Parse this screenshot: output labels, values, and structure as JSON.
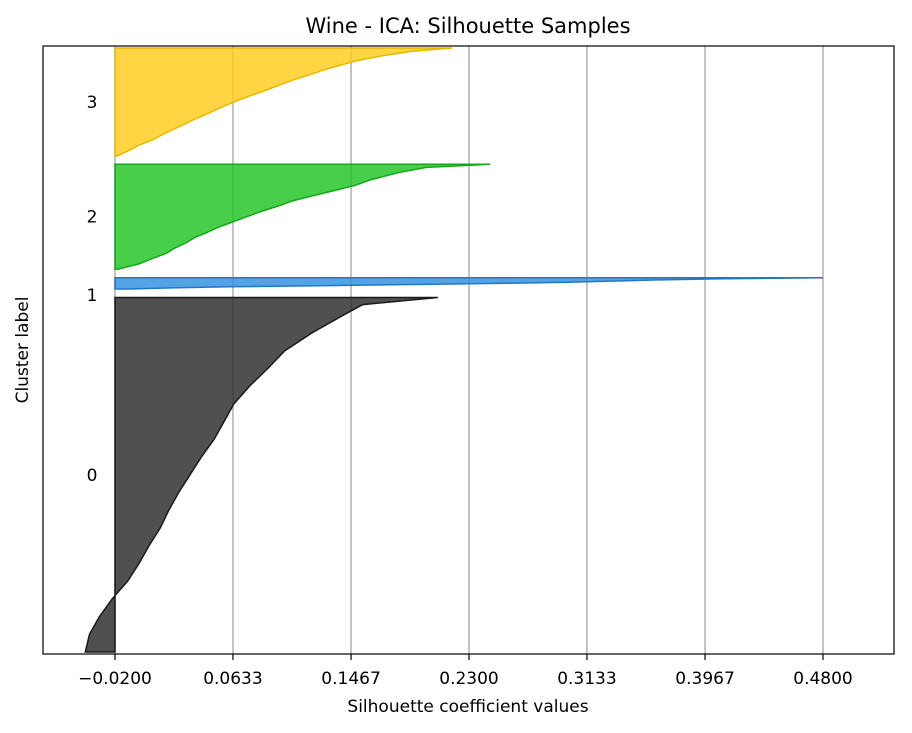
{
  "chart_data": {
    "type": "area",
    "title": "Wine - ICA: Silhouette Samples",
    "xlabel": "Silhouette coefficient values",
    "ylabel": "Cluster label",
    "xlim": [
      -0.12,
      0.43
    ],
    "x_ticks": [
      "−0.0200",
      "0.0633",
      "0.1467",
      "0.2300",
      "0.3133",
      "0.3967",
      "0.4800"
    ],
    "x_tick_values": [
      -0.02,
      0.0633,
      0.1467,
      0.23,
      0.3133,
      0.3967,
      0.48
    ],
    "grid": "vertical",
    "clusters": [
      {
        "label": "0",
        "color": "#2a2a2a",
        "stroke": "#1a1a1a",
        "y_range": [
          0,
          125
        ],
        "profile": [
          [
            0.0,
            0.208
          ],
          [
            0.02,
            0.155
          ],
          [
            0.05,
            0.141
          ],
          [
            0.1,
            0.119
          ],
          [
            0.15,
            0.1
          ],
          [
            0.2,
            0.088
          ],
          [
            0.25,
            0.075
          ],
          [
            0.3,
            0.064
          ],
          [
            0.35,
            0.057
          ],
          [
            0.4,
            0.05
          ],
          [
            0.45,
            0.041
          ],
          [
            0.5,
            0.033
          ],
          [
            0.55,
            0.025
          ],
          [
            0.6,
            0.018
          ],
          [
            0.65,
            0.012
          ],
          [
            0.7,
            0.004
          ],
          [
            0.75,
            -0.003
          ],
          [
            0.8,
            -0.011
          ],
          [
            0.85,
            -0.022
          ],
          [
            0.9,
            -0.031
          ],
          [
            0.95,
            -0.038
          ],
          [
            1.0,
            -0.041
          ]
        ]
      },
      {
        "label": "1",
        "color": "#2d8fe0",
        "stroke": "#1f78c8",
        "y_range": [
          128,
          132
        ],
        "profile": [
          [
            0.0,
            0.48
          ],
          [
            0.1,
            0.41
          ],
          [
            0.2,
            0.36
          ],
          [
            0.3,
            0.33
          ],
          [
            0.4,
            0.3
          ],
          [
            0.5,
            0.25
          ],
          [
            0.6,
            0.19
          ],
          [
            0.7,
            0.13
          ],
          [
            0.8,
            0.06
          ],
          [
            0.9,
            0.02
          ],
          [
            1.0,
            -0.01
          ]
        ]
      },
      {
        "label": "2",
        "color": "#1fc423",
        "stroke": "#17a51b",
        "y_range": [
          135,
          172
        ],
        "profile": [
          [
            0.0,
            0.245
          ],
          [
            0.03,
            0.2
          ],
          [
            0.08,
            0.18
          ],
          [
            0.15,
            0.16
          ],
          [
            0.2,
            0.15
          ],
          [
            0.25,
            0.135
          ],
          [
            0.3,
            0.12
          ],
          [
            0.35,
            0.105
          ],
          [
            0.4,
            0.095
          ],
          [
            0.45,
            0.083
          ],
          [
            0.5,
            0.073
          ],
          [
            0.55,
            0.063
          ],
          [
            0.6,
            0.053
          ],
          [
            0.65,
            0.045
          ],
          [
            0.7,
            0.036
          ],
          [
            0.75,
            0.03
          ],
          [
            0.8,
            0.022
          ],
          [
            0.85,
            0.016
          ],
          [
            0.9,
            0.006
          ],
          [
            0.95,
            -0.003
          ],
          [
            1.0,
            -0.018
          ]
        ]
      },
      {
        "label": "3",
        "color": "#ffcc1a",
        "stroke": "#e6b800",
        "y_range": [
          175,
          213
        ],
        "profile": [
          [
            0.0,
            0.218
          ],
          [
            0.03,
            0.19
          ],
          [
            0.07,
            0.17
          ],
          [
            0.12,
            0.15
          ],
          [
            0.2,
            0.128
          ],
          [
            0.25,
            0.117
          ],
          [
            0.3,
            0.105
          ],
          [
            0.35,
            0.095
          ],
          [
            0.4,
            0.085
          ],
          [
            0.45,
            0.074
          ],
          [
            0.5,
            0.064
          ],
          [
            0.55,
            0.055
          ],
          [
            0.6,
            0.047
          ],
          [
            0.65,
            0.038
          ],
          [
            0.7,
            0.03
          ],
          [
            0.75,
            0.022
          ],
          [
            0.8,
            0.014
          ],
          [
            0.85,
            0.007
          ],
          [
            0.9,
            -0.003
          ],
          [
            0.95,
            -0.01
          ],
          [
            1.0,
            -0.018
          ]
        ]
      }
    ]
  }
}
